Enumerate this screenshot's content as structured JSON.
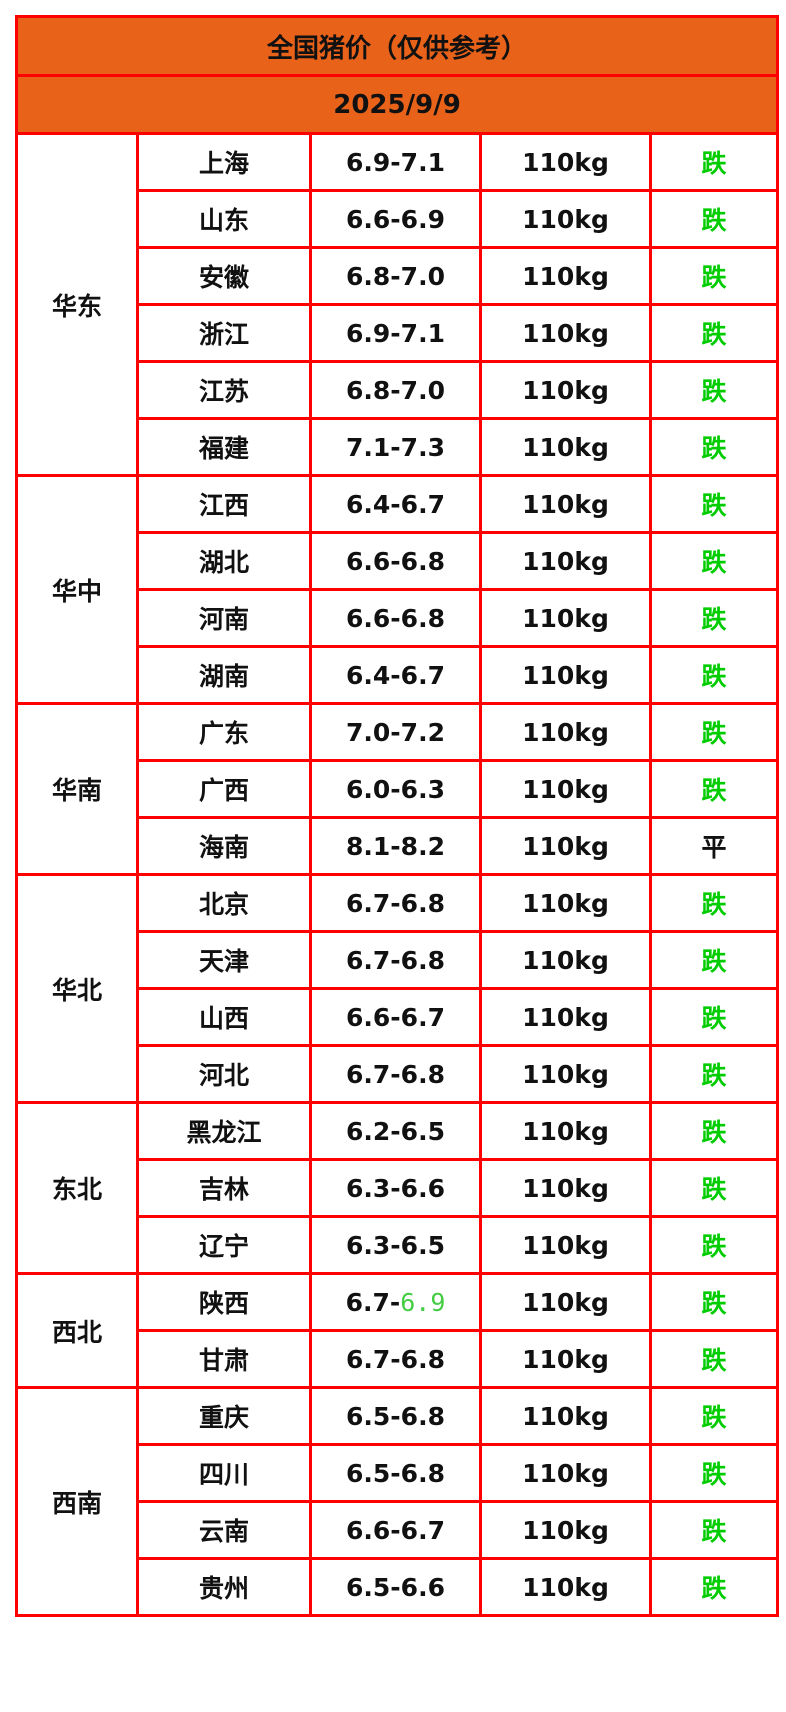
{
  "title": "全国猪价（仅供参考）",
  "date": "2025/9/9",
  "colors": {
    "border": "#ff0000",
    "header_bg": "#e8621a",
    "down": "#00cc00",
    "flat": "#111111",
    "alt_price": "#44cc44"
  },
  "regions": [
    {
      "name": "华东",
      "rows": [
        {
          "province": "上海",
          "price": "6.9-7.1",
          "weight": "110kg",
          "trend": "跌"
        },
        {
          "province": "山东",
          "price": "6.6-6.9",
          "weight": "110kg",
          "trend": "跌"
        },
        {
          "province": "安徽",
          "price": "6.8-7.0",
          "weight": "110kg",
          "trend": "跌"
        },
        {
          "province": "浙江",
          "price": "6.9-7.1",
          "weight": "110kg",
          "trend": "跌"
        },
        {
          "province": "江苏",
          "price": "6.8-7.0",
          "weight": "110kg",
          "trend": "跌"
        },
        {
          "province": "福建",
          "price": "7.1-7.3",
          "weight": "110kg",
          "trend": "跌"
        }
      ]
    },
    {
      "name": "华中",
      "rows": [
        {
          "province": "江西",
          "price": "6.4-6.7",
          "weight": "110kg",
          "trend": "跌"
        },
        {
          "province": "湖北",
          "price": "6.6-6.8",
          "weight": "110kg",
          "trend": "跌"
        },
        {
          "province": "河南",
          "price": "6.6-6.8",
          "weight": "110kg",
          "trend": "跌"
        },
        {
          "province": "湖南",
          "price": "6.4-6.7",
          "weight": "110kg",
          "trend": "跌"
        }
      ]
    },
    {
      "name": "华南",
      "rows": [
        {
          "province": "广东",
          "price": "7.0-7.2",
          "weight": "110kg",
          "trend": "跌"
        },
        {
          "province": "广西",
          "price": "6.0-6.3",
          "weight": "110kg",
          "trend": "跌"
        },
        {
          "province": "海南",
          "price": "8.1-8.2",
          "weight": "110kg",
          "trend": "平"
        }
      ]
    },
    {
      "name": "华北",
      "rows": [
        {
          "province": "北京",
          "price": "6.7-6.8",
          "weight": "110kg",
          "trend": "跌"
        },
        {
          "province": "天津",
          "price": "6.7-6.8",
          "weight": "110kg",
          "trend": "跌"
        },
        {
          "province": "山西",
          "price": "6.6-6.7",
          "weight": "110kg",
          "trend": "跌"
        },
        {
          "province": "河北",
          "price": "6.7-6.8",
          "weight": "110kg",
          "trend": "跌"
        }
      ]
    },
    {
      "name": "东北",
      "rows": [
        {
          "province": "黑龙江",
          "price": "6.2-6.5",
          "weight": "110kg",
          "trend": "跌"
        },
        {
          "province": "吉林",
          "price": "6.3-6.6",
          "weight": "110kg",
          "trend": "跌"
        },
        {
          "province": "辽宁",
          "price": "6.3-6.5",
          "weight": "110kg",
          "trend": "跌"
        }
      ]
    },
    {
      "name": "西北",
      "rows": [
        {
          "province": "陕西",
          "price": "6.7-",
          "price_alt": "6.9",
          "weight": "110kg",
          "trend": "跌"
        },
        {
          "province": "甘肃",
          "price": "6.7-6.8",
          "weight": "110kg",
          "trend": "跌"
        }
      ]
    },
    {
      "name": "西南",
      "rows": [
        {
          "province": "重庆",
          "price": "6.5-6.8",
          "weight": "110kg",
          "trend": "跌"
        },
        {
          "province": "四川",
          "price": "6.5-6.8",
          "weight": "110kg",
          "trend": "跌"
        },
        {
          "province": "云南",
          "price": "6.6-6.7",
          "weight": "110kg",
          "trend": "跌"
        },
        {
          "province": "贵州",
          "price": "6.5-6.6",
          "weight": "110kg",
          "trend": "跌"
        }
      ]
    }
  ]
}
